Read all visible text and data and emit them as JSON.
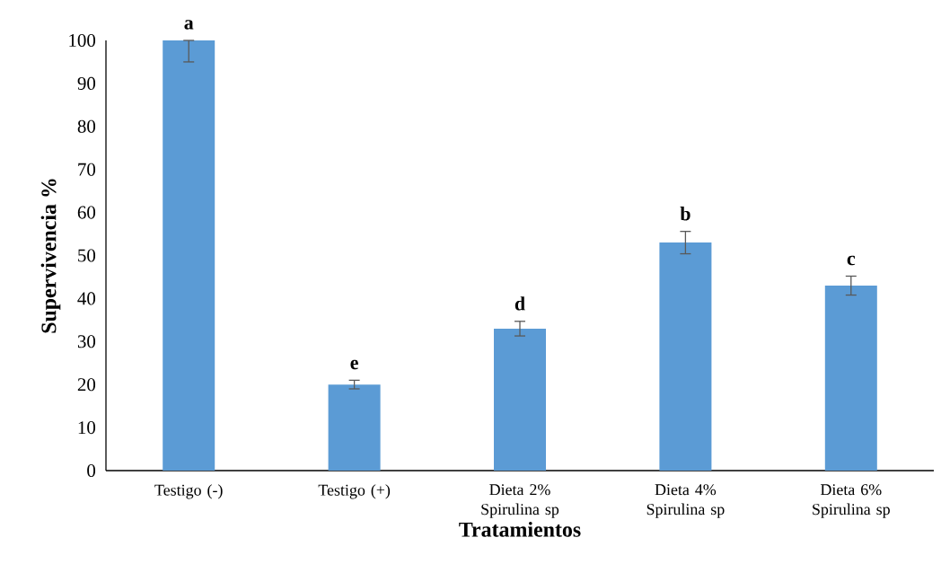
{
  "chart_data": {
    "type": "bar",
    "xlabel": "Tratamientos",
    "ylabel": "Supervivencia %",
    "categories": [
      "Testigo (-)",
      "Testigo (+)",
      "Dieta 2% Spirulina sp",
      "Dieta 4% Spirulina sp",
      "Dieta 6% Spirulina sp"
    ],
    "values": [
      100,
      20,
      33,
      53,
      43
    ],
    "errors": [
      [
        95,
        100
      ],
      1,
      1.7,
      2.6,
      2.2
    ],
    "color": "#5b9bd5",
    "ylim": [
      0,
      100
    ],
    "yticks": [
      0,
      10,
      20,
      30,
      40,
      50,
      60,
      70,
      80,
      90,
      100
    ],
    "annotations": [
      {
        "text": "a",
        "x": "Testigo (-)",
        "y": 100
      },
      {
        "text": "e",
        "x": "Testigo (+)",
        "y": 21
      },
      {
        "text": "d",
        "x": "Dieta 2% Spirulina sp",
        "y": 34.7
      },
      {
        "text": "b",
        "x": "Dieta 4% Spirulina sp",
        "y": 55.6
      },
      {
        "text": "c",
        "x": "Dieta 6% Spirulina sp",
        "y": 45.2
      }
    ]
  }
}
